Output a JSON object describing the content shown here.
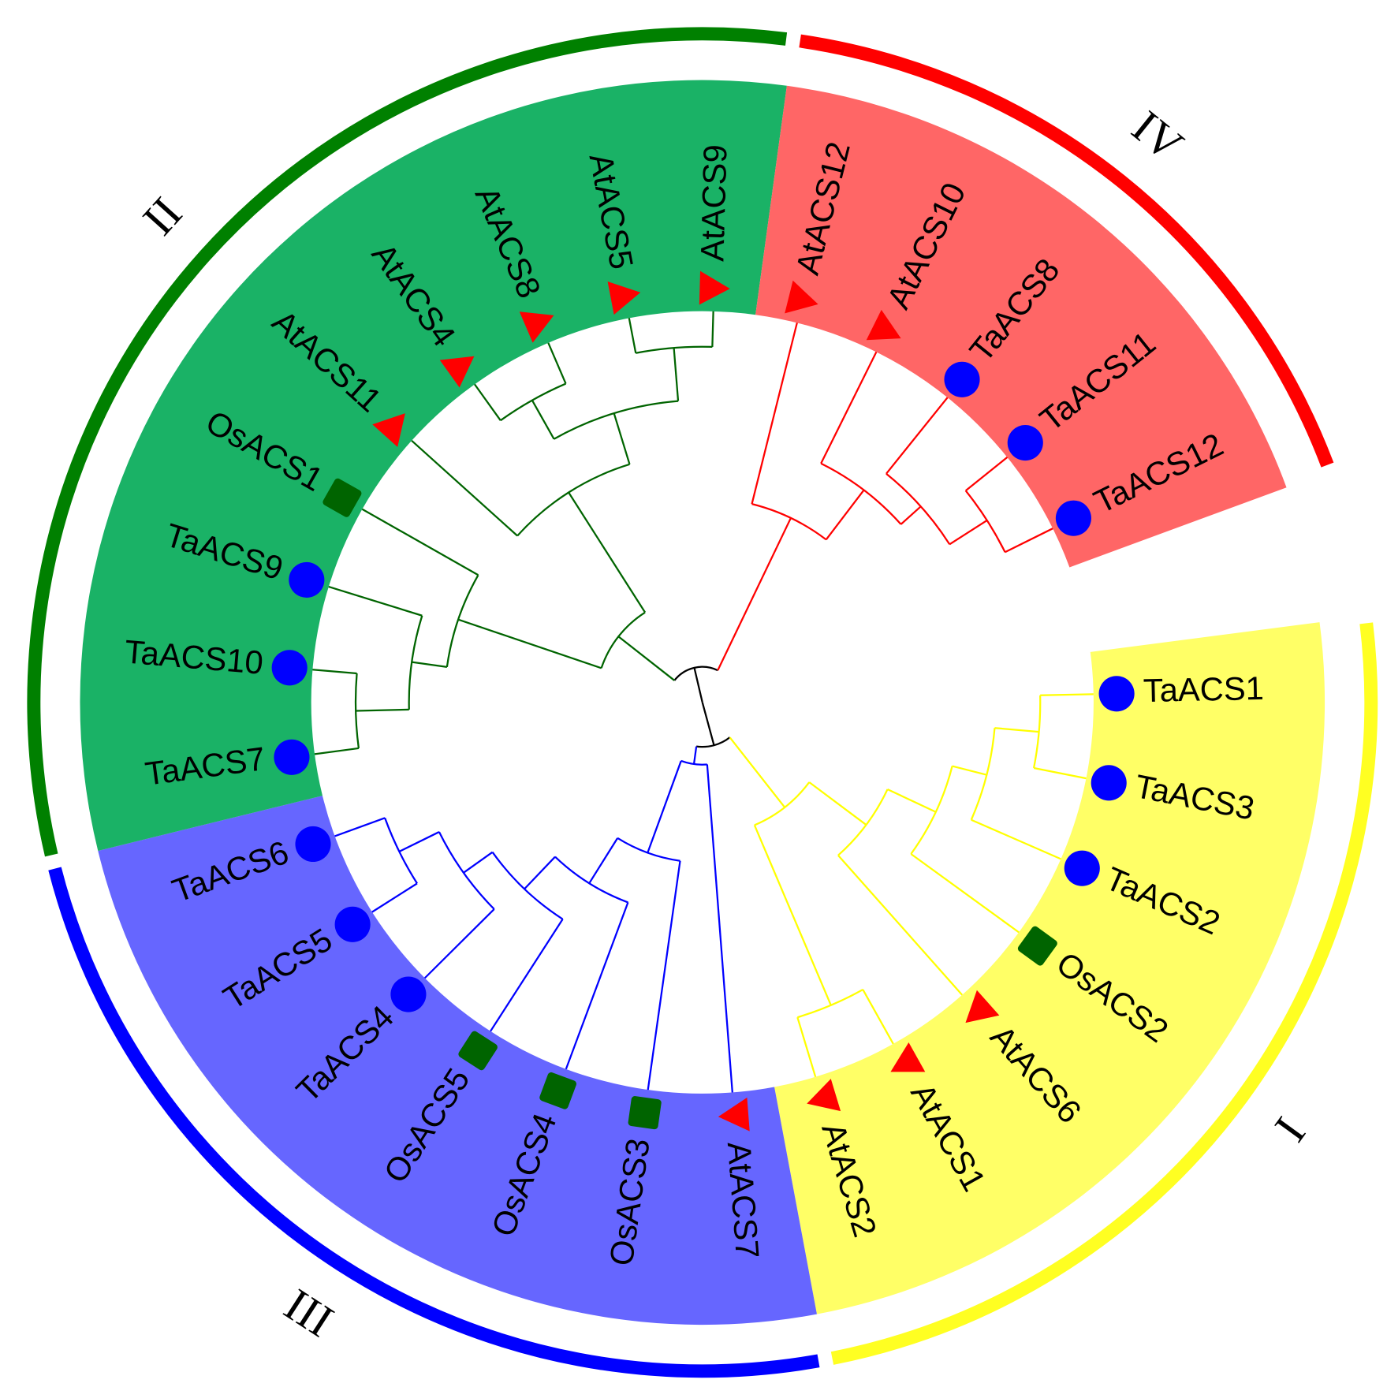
{
  "clades": [
    {
      "label": "I",
      "color": "#ffff22",
      "fill": "#ffff66",
      "branch": "#ffff00",
      "leaves": [
        {
          "label": "TaACS1",
          "marker": "circle"
        },
        {
          "label": "TaACS3",
          "marker": "circle"
        },
        {
          "label": "TaACS2",
          "marker": "circle"
        },
        {
          "label": "OsACS2",
          "marker": "square"
        },
        {
          "label": "AtACS6",
          "marker": "triangle"
        },
        {
          "label": "AtACS1",
          "marker": "triangle"
        },
        {
          "label": "AtACS2",
          "marker": "triangle"
        }
      ]
    },
    {
      "label": "III",
      "color": "#0000ff",
      "fill": "#6666ff",
      "branch": "#0000ff",
      "leaves": [
        {
          "label": "AtACS7",
          "marker": "triangle"
        },
        {
          "label": "OsACS3",
          "marker": "square"
        },
        {
          "label": "OsACS4",
          "marker": "square"
        },
        {
          "label": "OsACS5",
          "marker": "square"
        },
        {
          "label": "TaACS4",
          "marker": "circle"
        },
        {
          "label": "TaACS5",
          "marker": "circle"
        },
        {
          "label": "TaACS6",
          "marker": "circle"
        }
      ]
    },
    {
      "label": "II",
      "color": "#008000",
      "fill": "#1ab266",
      "branch": "#006400",
      "leaves": [
        {
          "label": "TaACS7",
          "marker": "circle"
        },
        {
          "label": "TaACS10",
          "marker": "circle"
        },
        {
          "label": "TaACS9",
          "marker": "circle"
        },
        {
          "label": "OsACS1",
          "marker": "square"
        },
        {
          "label": "AtACS11",
          "marker": "triangle"
        },
        {
          "label": "AtACS4",
          "marker": "triangle"
        },
        {
          "label": "AtACS8",
          "marker": "triangle"
        },
        {
          "label": "AtACS5",
          "marker": "triangle"
        },
        {
          "label": "AtACS9",
          "marker": "triangle"
        }
      ]
    },
    {
      "label": "IV",
      "color": "#ff0000",
      "fill": "#ff6666",
      "branch": "#ff0000",
      "leaves": [
        {
          "label": "AtACS12",
          "marker": "triangle"
        },
        {
          "label": "AtACS10",
          "marker": "triangle"
        },
        {
          "label": "TaACS8",
          "marker": "circle"
        },
        {
          "label": "TaACS11",
          "marker": "circle"
        },
        {
          "label": "TaACS12",
          "marker": "circle"
        }
      ]
    }
  ],
  "marker_colors": {
    "circle": "#0000ff",
    "triangle": "#ff0000",
    "square": "#006400"
  }
}
